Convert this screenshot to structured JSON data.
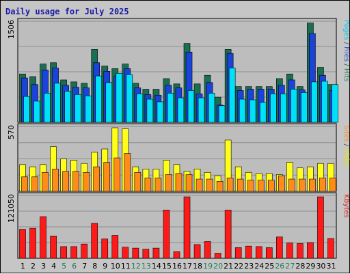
{
  "chart_data": {
    "type": "bar",
    "title": "Daily usage for July 2025",
    "x": [
      "1",
      "2",
      "3",
      "4",
      "5",
      "6",
      "7",
      "8",
      "9",
      "10",
      "11",
      "12",
      "13",
      "14",
      "15",
      "16",
      "17",
      "18",
      "19",
      "20",
      "21",
      "22",
      "23",
      "24",
      "25",
      "26",
      "27",
      "28",
      "29",
      "30",
      "31"
    ],
    "weekend_days": [
      "5",
      "6",
      "12",
      "13",
      "19",
      "20",
      "26",
      "27"
    ],
    "weekend_color": "#1f7f5a",
    "weekday_color": "#000000",
    "panels": [
      {
        "id": "hits",
        "ymax_label": "1506",
        "ymax": 1506,
        "grid": true,
        "right_label_parts": [
          {
            "text": "Pages",
            "color": "#00c7e6"
          },
          {
            "text": " / ",
            "color": "#555555"
          },
          {
            "text": "Files",
            "color": "#1f4fd6"
          },
          {
            "text": " / ",
            "color": "#555555"
          },
          {
            "text": "Hits",
            "color": "#1f7f5a"
          }
        ],
        "series": [
          {
            "name": "Hits",
            "color": "#1a6e52",
            "values": [
              730,
              690,
              880,
              900,
              640,
              610,
              590,
              1100,
              850,
              810,
              880,
              590,
              500,
              500,
              660,
              580,
              1190,
              580,
              710,
              380,
              1100,
              540,
              540,
              540,
              540,
              660,
              730,
              540,
              1500,
              830,
              570
            ]
          },
          {
            "name": "Files",
            "color": "#1a43d9",
            "values": [
              670,
              570,
              790,
              820,
              560,
              530,
              520,
              900,
              770,
              700,
              810,
              520,
              420,
              410,
              560,
              520,
              1060,
              430,
              600,
              260,
              1040,
              480,
              500,
              500,
              500,
              560,
              640,
              490,
              1340,
              710,
              480
            ]
          },
          {
            "name": "Pages",
            "color": "#00e0f8",
            "values": [
              390,
              320,
              440,
              590,
              470,
              420,
              400,
              700,
              600,
              740,
              720,
              430,
              350,
              310,
              440,
              370,
              480,
              370,
              440,
              250,
              820,
              350,
              340,
              300,
              430,
              430,
              500,
              450,
              610,
              620,
              570
            ]
          }
        ]
      },
      {
        "id": "visits",
        "ymax_label": "570",
        "ymax": 570,
        "grid": true,
        "right_label_parts": [
          {
            "text": "Sites",
            "color": "#ff8c1a"
          },
          {
            "text": " / ",
            "color": "#555555"
          },
          {
            "text": "Visits",
            "color": "#e6e600"
          }
        ],
        "series": [
          {
            "name": "Visits",
            "color": "#ffff1a",
            "values": [
              240,
              220,
              240,
              400,
              290,
              280,
              250,
              350,
              380,
              570,
              560,
              220,
              200,
              200,
              280,
              240,
              180,
              200,
              170,
              140,
              460,
              220,
              170,
              160,
              160,
              150,
              260,
              210,
              220,
              250,
              250
            ]
          },
          {
            "name": "Sites",
            "color": "#ff8c1a",
            "values": [
              130,
              130,
              170,
              200,
              180,
              180,
              170,
              220,
              260,
              300,
              340,
              170,
              120,
              120,
              150,
              160,
              150,
              110,
              110,
              90,
              120,
              110,
              100,
              100,
              100,
              140,
              110,
              110,
              110,
              120,
              120
            ]
          }
        ]
      },
      {
        "id": "kbytes",
        "ymax_label": "121050",
        "ymax": 121050,
        "grid": true,
        "right_label_parts": [
          {
            "text": "KBytes",
            "color": "#e61a1a"
          }
        ],
        "series": [
          {
            "name": "KBytes",
            "color": "#ff1a1a",
            "values": [
              57000,
              59000,
              82000,
              44000,
              23000,
              23000,
              28000,
              69000,
              38000,
              45000,
              22000,
              20000,
              18000,
              20000,
              95000,
              13000,
              121000,
              27000,
              33000,
              10000,
              95000,
              21000,
              24000,
              23000,
              21000,
              42000,
              30000,
              29000,
              31000,
              121000,
              39000
            ]
          }
        ]
      }
    ]
  }
}
